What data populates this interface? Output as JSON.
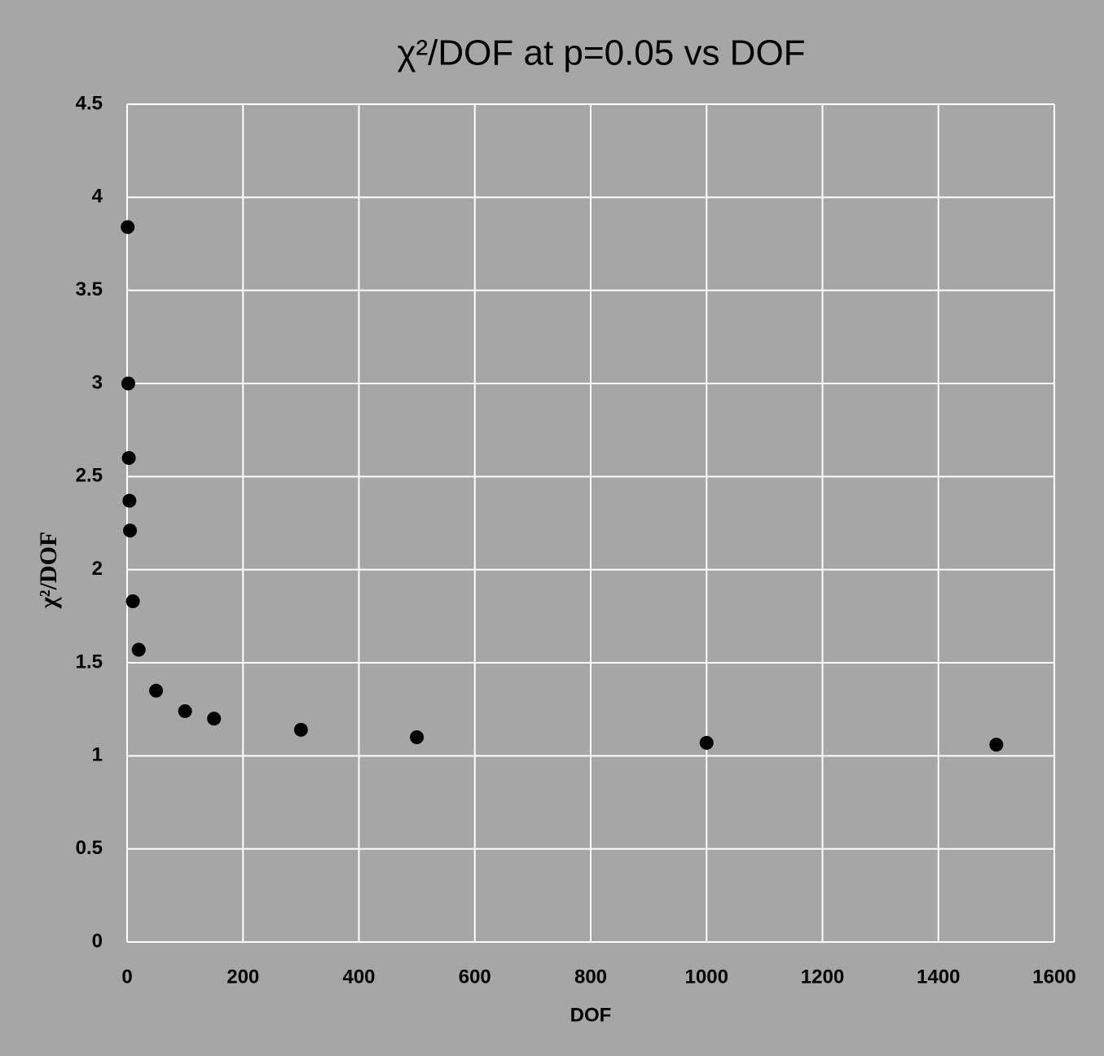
{
  "chart_data": {
    "type": "scatter",
    "title": "χ²/DOF at p=0.05 vs DOF",
    "x_label": "DOF",
    "y_label": "χ²/DOF",
    "x": [
      1,
      2,
      3,
      4,
      5,
      10,
      20,
      50,
      100,
      150,
      300,
      500,
      1000,
      1500
    ],
    "series": [
      {
        "name": "χ²/DOF",
        "color": "#000000",
        "values": [
          3.84,
          3.0,
          2.6,
          2.37,
          2.21,
          1.83,
          1.57,
          1.35,
          1.24,
          1.2,
          1.14,
          1.1,
          1.07,
          1.06
        ]
      }
    ],
    "xlim": [
      0,
      1600
    ],
    "xticks": [
      0,
      200,
      400,
      600,
      800,
      1000,
      1200,
      1400,
      1600
    ],
    "ylim": [
      0,
      4.5
    ],
    "yticks": [
      0,
      0.5,
      1,
      1.5,
      2,
      2.5,
      3,
      3.5,
      4,
      4.5
    ],
    "grid": true
  }
}
